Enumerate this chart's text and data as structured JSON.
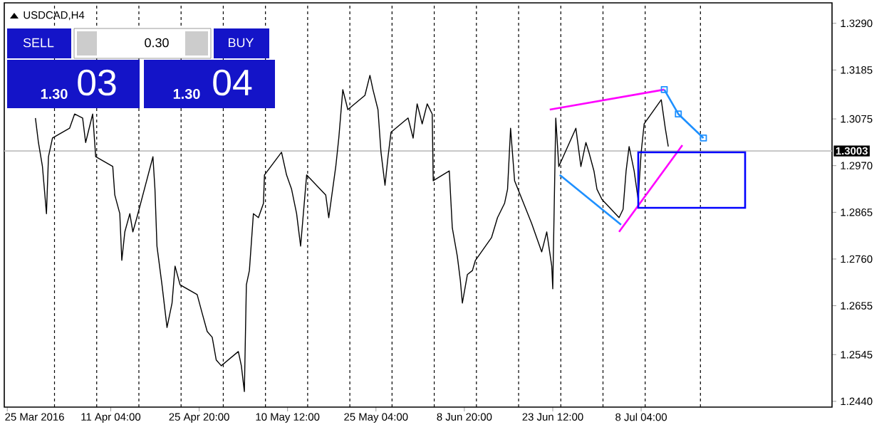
{
  "chart_data": {
    "type": "line",
    "title": "USDCAD,H4",
    "annotations": [
      "SELL",
      "0.30",
      "BUY",
      "1.30",
      "03",
      "1.30",
      "04"
    ],
    "xlim": [
      "2016-03-24T12:00",
      "2016-08-08T20:00"
    ],
    "ylim": [
      1.2427,
      1.3336
    ],
    "xticks": [
      {
        "value": "2016-03-25T00:00",
        "label": "25 Mar 2016"
      },
      {
        "value": "2016-04-11T04:00",
        "label": "11 Apr 04:00"
      },
      {
        "value": "2016-04-25T20:00",
        "label": "25 Apr 20:00"
      },
      {
        "value": "2016-05-10T12:00",
        "label": "10 May 12:00"
      },
      {
        "value": "2016-05-25T04:00",
        "label": "25 May 04:00"
      },
      {
        "value": "2016-06-08T20:00",
        "label": "8 Jun 20:00"
      },
      {
        "value": "2016-06-23T12:00",
        "label": "23 Jun 12:00"
      },
      {
        "value": "2016-07-08T04:00",
        "label": "8 Jul 04:00"
      }
    ],
    "yticks": [
      {
        "value": 1.329,
        "label": "1.3290"
      },
      {
        "value": 1.3185,
        "label": "1.3185"
      },
      {
        "value": 1.3075,
        "label": "1.3075"
      },
      {
        "value": 1.297,
        "label": "1.2970"
      },
      {
        "value": 1.2865,
        "label": "1.2865"
      },
      {
        "value": 1.276,
        "label": "1.2760"
      },
      {
        "value": 1.2655,
        "label": "1.2655"
      },
      {
        "value": 1.2545,
        "label": "1.2545"
      },
      {
        "value": 1.244,
        "label": "1.2440"
      }
    ],
    "ref_lines": [
      {
        "axis": "y",
        "value": 1.3003,
        "label": "1.3003",
        "color": "#c0c0c0",
        "line_style": "solid"
      },
      {
        "axis": "x",
        "value": "2016-04-01T20:00",
        "color": "#000000",
        "line_style": "dashed"
      },
      {
        "axis": "x",
        "value": "2016-04-08T20:00",
        "color": "#000000",
        "line_style": "dashed"
      },
      {
        "axis": "x",
        "value": "2016-04-15T20:00",
        "color": "#000000",
        "line_style": "dashed"
      },
      {
        "axis": "x",
        "value": "2016-04-22T20:00",
        "color": "#000000",
        "line_style": "dashed"
      },
      {
        "axis": "x",
        "value": "2016-04-29T20:00",
        "color": "#000000",
        "line_style": "dashed"
      },
      {
        "axis": "x",
        "value": "2016-05-06T20:00",
        "color": "#000000",
        "line_style": "dashed"
      },
      {
        "axis": "x",
        "value": "2016-05-13T20:00",
        "color": "#000000",
        "line_style": "dashed"
      },
      {
        "axis": "x",
        "value": "2016-05-20T20:00",
        "color": "#000000",
        "line_style": "dashed"
      },
      {
        "axis": "x",
        "value": "2016-05-27T20:00",
        "color": "#000000",
        "line_style": "dashed"
      },
      {
        "axis": "x",
        "value": "2016-06-03T20:00",
        "color": "#000000",
        "line_style": "dashed"
      },
      {
        "axis": "x",
        "value": "2016-06-10T20:00",
        "color": "#000000",
        "line_style": "dashed"
      },
      {
        "axis": "x",
        "value": "2016-06-17T20:00",
        "color": "#000000",
        "line_style": "dashed"
      },
      {
        "axis": "x",
        "value": "2016-06-24T20:00",
        "color": "#000000",
        "line_style": "dashed"
      },
      {
        "axis": "x",
        "value": "2016-07-01T20:00",
        "color": "#000000",
        "line_style": "dashed"
      },
      {
        "axis": "x",
        "value": "2016-07-08T20:00",
        "color": "#000000",
        "line_style": "dashed"
      },
      {
        "axis": "x",
        "value": "2016-07-18T00:00",
        "color": "#000000",
        "line_style": "dashed"
      }
    ],
    "series": [
      {
        "color": "#000000",
        "x": [
          "2016-03-29T16:00",
          "2016-03-30T04:00",
          "2016-03-30T20:00",
          "2016-03-31T12:00",
          "2016-03-31T20:00",
          "2016-04-01T12:00",
          "2016-04-04T08:00",
          "2016-04-05T04:00",
          "2016-04-06T12:00",
          "2016-04-07T00:00",
          "2016-04-08T04:00",
          "2016-04-08T16:00",
          "2016-04-11T12:00",
          "2016-04-11T20:00",
          "2016-04-12T16:00",
          "2016-04-13T00:00",
          "2016-04-13T12:00",
          "2016-04-14T08:00",
          "2016-04-14T20:00",
          "2016-04-15T12:00",
          "2016-04-18T04:00",
          "2016-04-18T12:00",
          "2016-04-18T20:00",
          "2016-04-19T16:00",
          "2016-04-20T12:00",
          "2016-04-21T08:00",
          "2016-04-21T20:00",
          "2016-04-22T16:00",
          "2016-04-25T12:00",
          "2016-04-26T08:00",
          "2016-04-27T04:00",
          "2016-04-28T00:00",
          "2016-04-28T16:00",
          "2016-04-29T12:00",
          "2016-05-02T08:00",
          "2016-05-02T20:00",
          "2016-05-03T08:00",
          "2016-05-03T16:00",
          "2016-05-04T04:00",
          "2016-05-04T20:00",
          "2016-05-05T16:00",
          "2016-05-06T12:00",
          "2016-05-06T16:00",
          "2016-05-09T12:00",
          "2016-05-10T08:00",
          "2016-05-11T04:00",
          "2016-05-12T00:00",
          "2016-05-12T16:00",
          "2016-05-13T16:00",
          "2016-05-16T20:00",
          "2016-05-17T08:00",
          "2016-05-18T12:00",
          "2016-05-19T00:00",
          "2016-05-19T16:00",
          "2016-05-20T12:00",
          "2016-05-23T08:00",
          "2016-05-24T04:00",
          "2016-05-24T16:00",
          "2016-05-25T12:00",
          "2016-05-26T00:00",
          "2016-05-26T16:00",
          "2016-05-27T04:00",
          "2016-05-27T16:00",
          "2016-05-30T12:00",
          "2016-05-31T08:00",
          "2016-06-01T00:00",
          "2016-06-01T20:00",
          "2016-06-02T16:00",
          "2016-06-03T12:00",
          "2016-06-03T16:00",
          "2016-06-06T08:00",
          "2016-06-06T20:00",
          "2016-06-07T16:00",
          "2016-06-08T04:00",
          "2016-06-08T12:00",
          "2016-06-09T08:00",
          "2016-06-10T04:00",
          "2016-06-10T16:00",
          "2016-06-13T08:00",
          "2016-06-14T08:00",
          "2016-06-15T12:00",
          "2016-06-16T00:00",
          "2016-06-16T12:00",
          "2016-06-17T04:00",
          "2016-06-20T00:00",
          "2016-06-20T20:00",
          "2016-06-21T16:00",
          "2016-06-22T12:00",
          "2016-06-23T08:00",
          "2016-06-23T12:00",
          "2016-06-24T00:00",
          "2016-06-24T12:00",
          "2016-06-27T08:00",
          "2016-06-28T04:00",
          "2016-06-29T00:00",
          "2016-06-29T12:00",
          "2016-06-30T08:00",
          "2016-06-30T20:00",
          "2016-07-01T16:00",
          "2016-07-04T12:00",
          "2016-07-05T04:00",
          "2016-07-05T16:00",
          "2016-07-06T04:00",
          "2016-07-07T00:00",
          "2016-07-07T16:00",
          "2016-07-08T04:00",
          "2016-07-08T16:00",
          "2016-07-11T12:00",
          "2016-07-12T04:00",
          "2016-07-12T16:00"
        ],
        "values": [
          1.3077,
          1.3022,
          1.2968,
          1.2862,
          1.299,
          1.3032,
          1.3054,
          1.3086,
          1.3077,
          1.3022,
          1.3086,
          1.299,
          1.2968,
          1.2904,
          1.2862,
          1.2757,
          1.2821,
          1.2862,
          1.2821,
          1.2853,
          1.299,
          1.2917,
          1.2789,
          1.2702,
          1.2606,
          1.2661,
          1.2744,
          1.2702,
          1.268,
          1.2638,
          1.2597,
          1.2584,
          1.2533,
          1.252,
          1.2552,
          1.252,
          1.2462,
          1.2702,
          1.2734,
          1.2862,
          1.2853,
          1.2885,
          1.2949,
          1.3,
          1.2949,
          1.2917,
          1.2862,
          1.2789,
          1.2949,
          1.2904,
          1.2853,
          1.2968,
          1.3032,
          1.3141,
          1.3096,
          1.3128,
          1.3173,
          1.3141,
          1.3096,
          1.3,
          1.2926,
          1.299,
          1.3045,
          1.3077,
          1.3032,
          1.3109,
          1.3064,
          1.3109,
          1.3086,
          1.2936,
          1.2958,
          1.283,
          1.2766,
          1.2712,
          1.2661,
          1.2725,
          1.2734,
          1.2757,
          1.2808,
          1.2853,
          1.2885,
          1.2917,
          1.3054,
          1.2936,
          1.284,
          1.2808,
          1.2776,
          1.2821,
          1.2744,
          1.2693,
          1.3077,
          1.2968,
          1.3054,
          1.2968,
          1.3022,
          1.3,
          1.2958,
          1.2917,
          1.2894,
          1.2853,
          1.2872,
          1.2958,
          1.3013,
          1.2958,
          1.2894,
          1.3,
          1.3064,
          1.3118,
          1.3054,
          1.3013
        ]
      },
      {
        "color": "#ff00ff",
        "x": [
          "2016-06-23T00:00",
          "2016-07-12T00:00"
        ],
        "values": [
          1.3096,
          1.3141
        ]
      },
      {
        "color": "#ff00ff",
        "x": [
          "2016-07-04T12:00",
          "2016-07-15T00:00"
        ],
        "values": [
          1.2821,
          1.3016
        ]
      },
      {
        "color": "#1e90ff",
        "x": [
          "2016-06-24T16:00",
          "2016-07-04T20:00"
        ],
        "values": [
          1.2949,
          1.2837
        ]
      },
      {
        "color": "#1e90ff",
        "marker": "square",
        "x": [
          "2016-07-12T00:00",
          "2016-07-14T08:00",
          "2016-07-18T12:00"
        ],
        "values": [
          1.3141,
          1.3086,
          1.3032
        ]
      }
    ]
  }
}
